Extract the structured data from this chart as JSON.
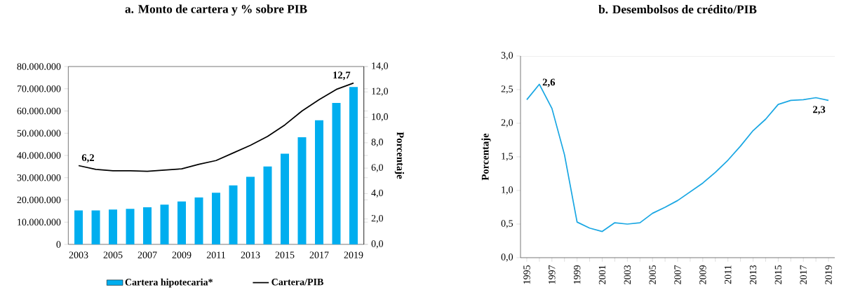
{
  "chart_data": [
    {
      "type": "bar",
      "title": "a. Monto de cartera y % sobre PIB",
      "y2label": "Porcentaje",
      "categories": [
        "2003",
        null,
        "2005",
        null,
        "2007",
        null,
        "2009",
        null,
        "2011",
        null,
        "2013",
        null,
        "2015",
        null,
        "2017",
        null,
        "2019"
      ],
      "series": [
        {
          "name": "Cartera hipotecaria*",
          "type": "bar",
          "color": "#00aeef",
          "values": [
            15300000,
            15300000,
            15700000,
            16000000,
            16700000,
            17900000,
            19300000,
            21100000,
            23200000,
            26500000,
            30400000,
            35000000,
            40800000,
            48200000,
            55800000,
            63600000,
            70800000
          ]
        },
        {
          "name": "Cartera/PIB",
          "type": "line",
          "axis": "y2",
          "color": "#000000",
          "values": [
            6.2,
            5.9,
            5.8,
            5.8,
            5.75,
            5.85,
            5.95,
            6.3,
            6.6,
            7.2,
            7.8,
            8.5,
            9.4,
            10.5,
            11.4,
            12.2,
            12.7
          ]
        }
      ],
      "ylim": [
        0,
        80000000
      ],
      "yticks": [
        0,
        {
          "value": 10000000,
          "label": "10.000.000"
        },
        {
          "value": 20000000,
          "label": "20.000.000"
        },
        {
          "value": 30000000,
          "label": "30.000.000"
        },
        {
          "value": 40000000,
          "label": "40.000.000"
        },
        {
          "value": 50000000,
          "label": "50.000.000"
        },
        {
          "value": 60000000,
          "label": "60.000.000"
        },
        {
          "value": 70000000,
          "label": "70.000.000"
        },
        {
          "value": 80000000,
          "label": "80.000.000"
        }
      ],
      "y2lim": [
        0,
        14
      ],
      "y2ticks": [
        {
          "value": 0,
          "label": "0,0"
        },
        {
          "value": 2,
          "label": "2,0"
        },
        {
          "value": 4,
          "label": "4,0"
        },
        {
          "value": 6,
          "label": "6,0"
        },
        {
          "value": 8,
          "label": "8,0"
        },
        {
          "value": 10,
          "label": "10,0"
        },
        {
          "value": 12,
          "label": "12,0"
        },
        {
          "value": 14,
          "label": "14,0"
        }
      ],
      "annotations": [
        "6,2",
        "12,7"
      ],
      "legend": "bottom"
    },
    {
      "type": "line",
      "title": "b. Desembolsos de crédito/PIB",
      "ylabel": "Porcentaje",
      "x": [
        1995,
        1996,
        1997,
        1998,
        1999,
        2000,
        2001,
        2002,
        2003,
        2004,
        2005,
        2006,
        2007,
        2008,
        2009,
        2010,
        2011,
        2012,
        2013,
        2014,
        2015,
        2016,
        2017,
        2018,
        2019
      ],
      "series": [
        {
          "color": "#1aa7e3",
          "values": [
            2.35,
            2.58,
            2.22,
            1.53,
            0.53,
            0.44,
            0.39,
            0.52,
            0.5,
            0.52,
            0.66,
            0.75,
            0.85,
            0.98,
            1.11,
            1.27,
            1.45,
            1.66,
            1.89,
            2.06,
            2.28,
            2.34,
            2.35,
            2.38,
            2.34
          ]
        }
      ],
      "xlim": [
        1994.5,
        2019.5
      ],
      "xticks": [
        1995,
        {
          "value": 1996,
          "label": null
        },
        1997,
        {
          "value": 1998,
          "label": null
        },
        1999,
        {
          "value": 2000,
          "label": null
        },
        2001,
        {
          "value": 2002,
          "label": null
        },
        2003,
        {
          "value": 2004,
          "label": null
        },
        2005,
        {
          "value": 2006,
          "label": null
        },
        2007,
        {
          "value": 2008,
          "label": null
        },
        2009,
        {
          "value": 2010,
          "label": null
        },
        2011,
        {
          "value": 2012,
          "label": null
        },
        2013,
        {
          "value": 2014,
          "label": null
        },
        2015,
        {
          "value": 2016,
          "label": null
        },
        2017,
        {
          "value": 2018,
          "label": null
        },
        2019
      ],
      "ylim": [
        0,
        3
      ],
      "yticks": [
        {
          "value": 0,
          "label": "0,0"
        },
        {
          "value": 0.5,
          "label": "0,5"
        },
        {
          "value": 1,
          "label": "1,0"
        },
        {
          "value": 1.5,
          "label": "1,5"
        },
        {
          "value": 2,
          "label": "2,0"
        },
        {
          "value": 2.5,
          "label": "2,5"
        },
        {
          "value": 3,
          "label": "3,0"
        }
      ],
      "annotations": [
        {
          "text": "2,6",
          "x": 1996,
          "y": 2.6
        },
        {
          "text": "2,3",
          "x": 2019,
          "y": 2.3
        }
      ]
    }
  ]
}
